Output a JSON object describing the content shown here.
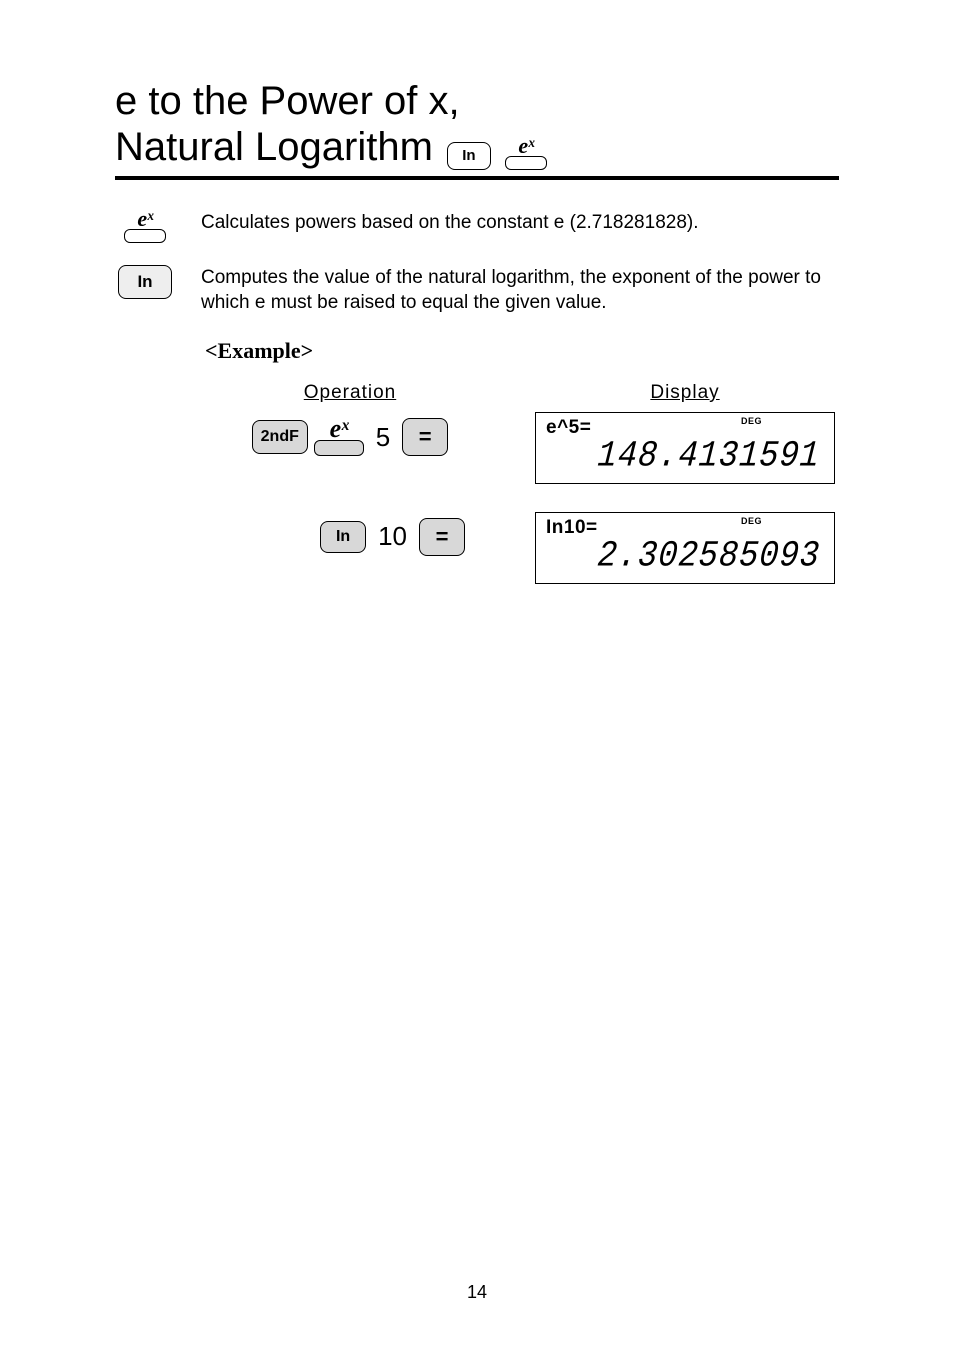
{
  "title": {
    "line1": "e to the Power of x,",
    "line2": "Natural Logarithm",
    "key_ln": "In",
    "key_ex": "eˣ"
  },
  "descriptions": {
    "ex_icon": "eˣ",
    "ex_text": "Calculates powers based on the constant e (2.718281828).",
    "ln_icon": "In",
    "ln_text": "Computes the value of the natural logarithm, the exponent of the power to which e must be raised to equal the given value."
  },
  "example": {
    "heading": "<Example>",
    "col_operation": "Operation",
    "col_display": "Display",
    "rows": [
      {
        "keys": {
          "secondf": "2ndF",
          "ex": "eˣ",
          "num": "5",
          "eq": "="
        },
        "display": {
          "deg": "DEG",
          "expr": "e^5=",
          "value": "148.4131591"
        }
      },
      {
        "keys": {
          "ln": "In",
          "num": "10",
          "eq": "="
        },
        "display": {
          "deg": "DEG",
          "expr": "In10=",
          "value": "2.302585093"
        }
      }
    ]
  },
  "page_number": "14"
}
